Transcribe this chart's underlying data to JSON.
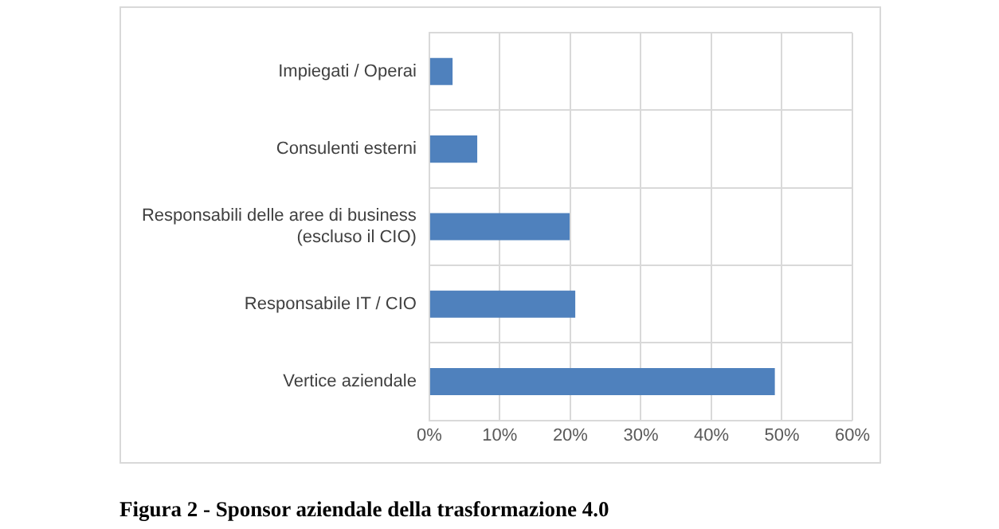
{
  "chart_data": {
    "type": "bar",
    "orientation": "horizontal",
    "title": "Figura 2 - Sponsor aziendale della trasformazione 4.0",
    "categories": [
      "Impiegati / Operai",
      "Consulenti esterni",
      "Responsabili delle aree di business (escluso il CIO)",
      "Responsabile IT / CIO",
      "Vertice aziendale"
    ],
    "values": [
      3.3,
      6.8,
      19.9,
      20.7,
      49
    ],
    "color": "#4f81bd",
    "xlim": [
      0,
      60
    ],
    "xticks": [
      {
        "value": 0,
        "label": "0%"
      },
      {
        "value": 10,
        "label": "10%"
      },
      {
        "value": 20,
        "label": "20%"
      },
      {
        "value": 30,
        "label": "30%"
      },
      {
        "value": 40,
        "label": "40%"
      },
      {
        "value": 50,
        "label": "50%"
      },
      {
        "value": 60,
        "label": "60%"
      }
    ],
    "grid": true,
    "legend": false
  }
}
